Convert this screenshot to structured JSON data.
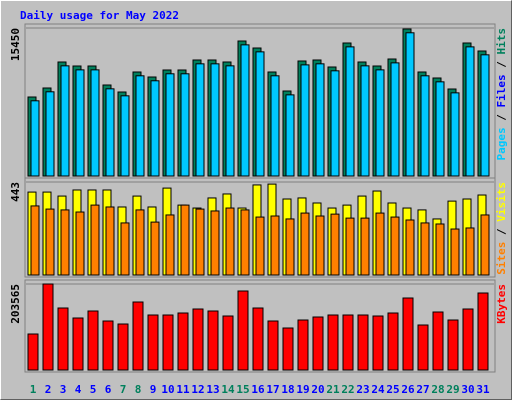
{
  "chart_data": [
    {
      "type": "bar",
      "title": "Daily usage for May 2022",
      "legend_separator": " / ",
      "categories": [
        "1",
        "2",
        "3",
        "4",
        "5",
        "6",
        "7",
        "8",
        "9",
        "10",
        "11",
        "12",
        "13",
        "14",
        "15",
        "16",
        "17",
        "18",
        "19",
        "20",
        "21",
        "22",
        "23",
        "24",
        "25",
        "26",
        "27",
        "28",
        "29",
        "30",
        "31"
      ],
      "label_colors": [
        "#00805c",
        "#0000ff",
        "#0000ff",
        "#0000ff",
        "#0000ff",
        "#0000ff",
        "#00805c",
        "#00805c",
        "#0000ff",
        "#0000ff",
        "#0000ff",
        "#0000ff",
        "#0000ff",
        "#00805c",
        "#00805c",
        "#0000ff",
        "#0000ff",
        "#0000ff",
        "#0000ff",
        "#0000ff",
        "#00805c",
        "#00805c",
        "#0000ff",
        "#0000ff",
        "#0000ff",
        "#0000ff",
        "#0000ff",
        "#00805c",
        "#00805c",
        "#0000ff",
        "#0000ff"
      ],
      "ylim": [
        0,
        15450
      ],
      "yticks": [
        15450
      ],
      "series": [
        {
          "name": "Hits",
          "color": "#00805c",
          "values": [
            8247,
            9187,
            11901,
            11483,
            11483,
            9500,
            8769,
            10857,
            10335,
            11066,
            11066,
            12110,
            12110,
            11901,
            14093,
            13362,
            10857,
            8873,
            12005,
            12110,
            11379,
            13884,
            11901,
            11483,
            12214,
            15346,
            10857,
            10231,
            9082,
            13884,
            13049
          ]
        },
        {
          "name": "Files",
          "color": "#0000ff",
          "values": [
            null,
            null,
            null,
            null,
            null,
            null,
            null,
            null,
            null,
            null,
            null,
            null,
            null,
            null,
            null,
            null,
            null,
            null,
            null,
            null,
            null,
            null,
            null,
            null,
            null,
            null,
            null,
            null,
            null,
            null,
            null
          ]
        },
        {
          "name": "Pages",
          "color": "#00c8ff",
          "values": [
            7850,
            8790,
            11500,
            11080,
            11080,
            9100,
            8370,
            10460,
            9940,
            10670,
            10670,
            11710,
            11710,
            11500,
            13690,
            12960,
            10460,
            8470,
            11600,
            11710,
            10980,
            13480,
            11500,
            11080,
            11810,
            14950,
            10460,
            9830,
            8680,
            13480,
            12650
          ]
        }
      ]
    },
    {
      "type": "bar",
      "ylim": [
        0,
        443
      ],
      "yticks": [
        443
      ],
      "series": [
        {
          "name": "Visits",
          "color": "#ffff00",
          "values": [
            395,
            395,
            376,
            405,
            405,
            405,
            324,
            376,
            324,
            414,
            333,
            319,
            367,
            386,
            319,
            429,
            433,
            362,
            367,
            343,
            319,
            333,
            376,
            400,
            343,
            319,
            310,
            267,
            352,
            362,
            381
          ]
        },
        {
          "name": "Sites",
          "color": "#ff8000",
          "values": [
            329,
            314,
            310,
            300,
            333,
            324,
            248,
            310,
            252,
            286,
            333,
            314,
            305,
            319,
            310,
            276,
            281,
            267,
            295,
            281,
            290,
            271,
            271,
            295,
            276,
            262,
            248,
            243,
            219,
            224,
            286
          ]
        }
      ]
    },
    {
      "type": "bar",
      "ylim": [
        0,
        203565
      ],
      "yticks": [
        203565
      ],
      "series": [
        {
          "name": "KBytes",
          "color": "#ff0000",
          "values": [
            85212,
            203565,
            146754,
            123084,
            139653,
            115983,
            108882,
            160956,
            130185,
            130185,
            134919,
            144387,
            139653,
            127818,
            186993,
            146754,
            115983,
            99414,
            118350,
            125451,
            130185,
            130185,
            130185,
            127818,
            134919,
            170424,
            106515,
            137286,
            118350,
            144387,
            182259
          ]
        }
      ]
    }
  ]
}
